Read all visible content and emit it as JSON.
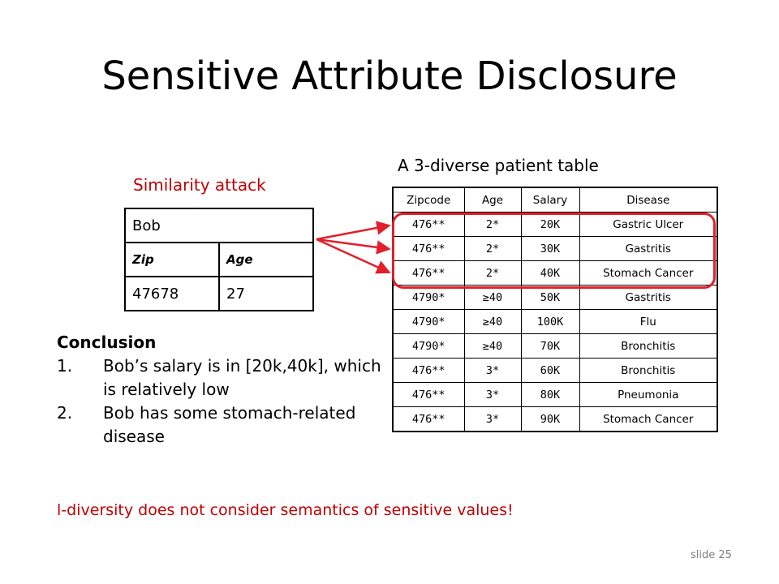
{
  "title": "Sensitive Attribute Disclosure",
  "similarity_label": "Similarity attack",
  "patient_caption": "A 3-diverse patient table",
  "bob": {
    "name": "Bob",
    "headers": [
      "Zip",
      "Age"
    ],
    "values": [
      "47678",
      "27"
    ]
  },
  "patient_table": {
    "headers": [
      "Zipcode",
      "Age",
      "Salary",
      "Disease"
    ],
    "rows": [
      [
        "476**",
        "2*",
        "20K",
        "Gastric Ulcer"
      ],
      [
        "476**",
        "2*",
        "30K",
        "Gastritis"
      ],
      [
        "476**",
        "2*",
        "40K",
        "Stomach Cancer"
      ],
      [
        "4790*",
        "≥40",
        "50K",
        "Gastritis"
      ],
      [
        "4790*",
        "≥40",
        "100K",
        "Flu"
      ],
      [
        "4790*",
        "≥40",
        "70K",
        "Bronchitis"
      ],
      [
        "476**",
        "3*",
        "60K",
        "Bronchitis"
      ],
      [
        "476**",
        "3*",
        "80K",
        "Pneumonia"
      ],
      [
        "476**",
        "3*",
        "90K",
        "Stomach Cancer"
      ]
    ]
  },
  "conclusion": {
    "heading": "Conclusion",
    "items": [
      {
        "num": "1.",
        "text": "Bob’s salary is in [20k,40k], which is relatively low"
      },
      {
        "num": "2.",
        "text": "Bob has some stomach-related disease"
      }
    ]
  },
  "footer_note": "l-diversity does not consider semantics of sensitive values!",
  "slide_number": "slide 25",
  "colors": {
    "accent_red": "#c00000",
    "highlight_red": "#e0202a",
    "slide_number_gray": "#7f7f7f"
  }
}
